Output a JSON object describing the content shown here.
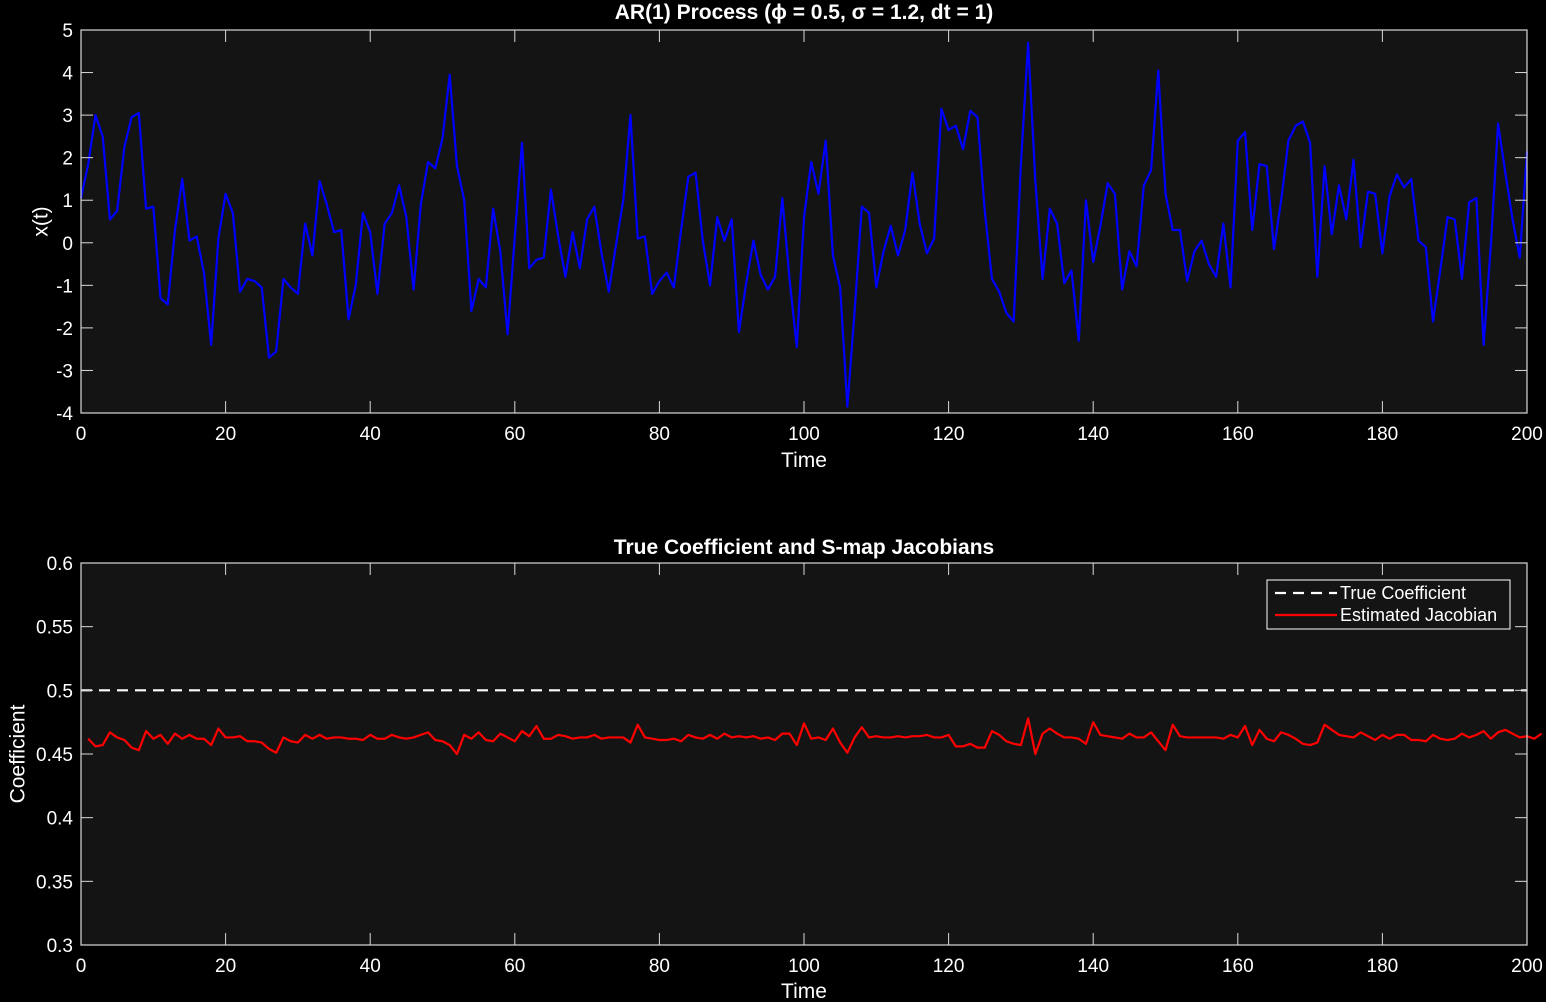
{
  "colors": {
    "background": "#000000",
    "axes_background": "#141414",
    "axis_line": "#d9d9d9",
    "series_blue": "#0000ff",
    "series_red": "#ff0000",
    "reference_white": "#ffffff",
    "legend_border": "#ffffff"
  },
  "chart_data": [
    {
      "type": "line",
      "title": "AR(1) Process (ϕ = 0.5, σ = 1.2, dt = 1)",
      "xlabel": "Time",
      "ylabel": "x(t)",
      "xlim": [
        0,
        200
      ],
      "ylim": [
        -4,
        5
      ],
      "xticks": [
        "0",
        "20",
        "40",
        "60",
        "80",
        "100",
        "120",
        "140",
        "160",
        "180",
        "200"
      ],
      "yticks": [
        "5",
        "4",
        "3",
        "2",
        "1",
        "0",
        "-1",
        "-2",
        "-3",
        "-4"
      ],
      "grid": false,
      "series": [
        {
          "name": "x(t)",
          "color": "#0000ff",
          "x_start": 0,
          "x_step": 1,
          "values": [
            1.05,
            1.85,
            3.0,
            2.5,
            0.55,
            0.75,
            2.25,
            2.95,
            3.05,
            0.8,
            0.85,
            -1.3,
            -1.45,
            0.3,
            1.5,
            0.05,
            0.15,
            -0.7,
            -2.4,
            0.1,
            1.15,
            0.7,
            -1.15,
            -0.85,
            -0.9,
            -1.05,
            -2.7,
            -2.55,
            -0.85,
            -1.05,
            -1.2,
            0.45,
            -0.3,
            1.45,
            0.9,
            0.25,
            0.3,
            -1.8,
            -1.0,
            0.7,
            0.25,
            -1.2,
            0.45,
            0.7,
            1.35,
            0.6,
            -1.1,
            0.9,
            1.9,
            1.75,
            2.45,
            3.95,
            1.8,
            1.0,
            -1.6,
            -0.85,
            -1.05,
            0.8,
            -0.2,
            -2.15,
            0.15,
            2.35,
            -0.6,
            -0.4,
            -0.35,
            1.25,
            0.15,
            -0.8,
            0.25,
            -0.6,
            0.55,
            0.85,
            -0.25,
            -1.15,
            -0.05,
            1.0,
            3.0,
            0.1,
            0.15,
            -1.2,
            -0.9,
            -0.7,
            -1.05,
            0.3,
            1.55,
            1.65,
            0.05,
            -1.0,
            0.6,
            0.05,
            0.55,
            -2.1,
            -0.95,
            0.05,
            -0.75,
            -1.1,
            -0.8,
            1.05,
            -0.85,
            -2.45,
            0.6,
            1.9,
            1.15,
            2.4,
            -0.3,
            -1.05,
            -3.85,
            -1.6,
            0.85,
            0.7,
            -1.05,
            -0.2,
            0.4,
            -0.3,
            0.3,
            1.65,
            0.45,
            -0.25,
            0.1,
            3.15,
            2.65,
            2.75,
            2.2,
            3.1,
            2.95,
            0.75,
            -0.85,
            -1.15,
            -1.65,
            -1.85,
            1.85,
            4.7,
            1.45,
            -0.85,
            0.8,
            0.45,
            -0.95,
            -0.65,
            -2.3,
            1.0,
            -0.45,
            0.4,
            1.4,
            1.15,
            -1.1,
            -0.2,
            -0.55,
            1.35,
            1.7,
            4.05,
            1.15,
            0.3,
            0.3,
            -0.9,
            -0.2,
            0.05,
            -0.5,
            -0.8,
            0.45,
            -1.05,
            2.4,
            2.6,
            0.3,
            1.85,
            1.8,
            -0.15,
            1.0,
            2.4,
            2.75,
            2.85,
            2.35,
            -0.8,
            1.8,
            0.2,
            1.35,
            0.55,
            1.95,
            -0.1,
            1.2,
            1.15,
            -0.25,
            1.1,
            1.6,
            1.3,
            1.5,
            0.05,
            -0.1,
            -1.85,
            -0.65,
            0.6,
            0.55,
            -0.85,
            0.95,
            1.05,
            -2.4,
            -0.05,
            2.8,
            1.65,
            0.55,
            -0.35,
            2.15
          ]
        }
      ]
    },
    {
      "type": "line",
      "title": "True Coefficient and S-map Jacobians",
      "xlabel": "Time",
      "ylabel": "Coefficient",
      "xlim": [
        0,
        200
      ],
      "ylim": [
        0.3,
        0.6
      ],
      "xticks": [
        "0",
        "20",
        "40",
        "60",
        "80",
        "100",
        "120",
        "140",
        "160",
        "180",
        "200"
      ],
      "yticks": [
        "0.6",
        "0.55",
        "0.5",
        "0.45",
        "0.4",
        "0.35",
        "0.3"
      ],
      "grid": false,
      "legend_position": "top-right",
      "series": [
        {
          "name": "True Coefficient",
          "color": "#ffffff",
          "style": "dashed",
          "x": [
            0,
            200
          ],
          "values": [
            0.5,
            0.5
          ]
        },
        {
          "name": "Estimated Jacobian",
          "color": "#ff0000",
          "style": "solid",
          "x_start": 1,
          "x_step": 1,
          "values": [
            0.462,
            0.456,
            0.457,
            0.467,
            0.463,
            0.461,
            0.455,
            0.453,
            0.468,
            0.462,
            0.465,
            0.458,
            0.466,
            0.462,
            0.465,
            0.462,
            0.462,
            0.457,
            0.47,
            0.463,
            0.463,
            0.464,
            0.46,
            0.46,
            0.459,
            0.454,
            0.451,
            0.463,
            0.46,
            0.459,
            0.465,
            0.462,
            0.465,
            0.462,
            0.463,
            0.463,
            0.462,
            0.462,
            0.461,
            0.465,
            0.462,
            0.462,
            0.465,
            0.463,
            0.462,
            0.463,
            0.465,
            0.467,
            0.461,
            0.46,
            0.457,
            0.45,
            0.465,
            0.462,
            0.467,
            0.461,
            0.46,
            0.466,
            0.463,
            0.46,
            0.468,
            0.464,
            0.472,
            0.462,
            0.462,
            0.465,
            0.464,
            0.462,
            0.463,
            0.463,
            0.465,
            0.462,
            0.463,
            0.463,
            0.463,
            0.459,
            0.473,
            0.463,
            0.462,
            0.461,
            0.461,
            0.462,
            0.46,
            0.465,
            0.463,
            0.462,
            0.465,
            0.462,
            0.466,
            0.463,
            0.464,
            0.463,
            0.464,
            0.462,
            0.463,
            0.461,
            0.466,
            0.466,
            0.457,
            0.474,
            0.462,
            0.463,
            0.461,
            0.47,
            0.459,
            0.451,
            0.463,
            0.471,
            0.463,
            0.464,
            0.463,
            0.463,
            0.464,
            0.463,
            0.464,
            0.464,
            0.465,
            0.463,
            0.463,
            0.465,
            0.456,
            0.456,
            0.458,
            0.455,
            0.455,
            0.468,
            0.465,
            0.46,
            0.458,
            0.457,
            0.478,
            0.45,
            0.466,
            0.47,
            0.466,
            0.463,
            0.463,
            0.462,
            0.458,
            0.475,
            0.465,
            0.464,
            0.463,
            0.462,
            0.466,
            0.463,
            0.463,
            0.467,
            0.46,
            0.453,
            0.473,
            0.464,
            0.463,
            0.463,
            0.463,
            0.463,
            0.463,
            0.462,
            0.465,
            0.463,
            0.472,
            0.457,
            0.469,
            0.462,
            0.46,
            0.467,
            0.465,
            0.462,
            0.458,
            0.457,
            0.459,
            0.473,
            0.469,
            0.465,
            0.464,
            0.463,
            0.467,
            0.464,
            0.461,
            0.465,
            0.462,
            0.465,
            0.465,
            0.461,
            0.461,
            0.46,
            0.465,
            0.462,
            0.461,
            0.462,
            0.466,
            0.463,
            0.465,
            0.468,
            0.462,
            0.467,
            0.469,
            0.466,
            0.463,
            0.464,
            0.462,
            0.466
          ]
        }
      ]
    }
  ]
}
